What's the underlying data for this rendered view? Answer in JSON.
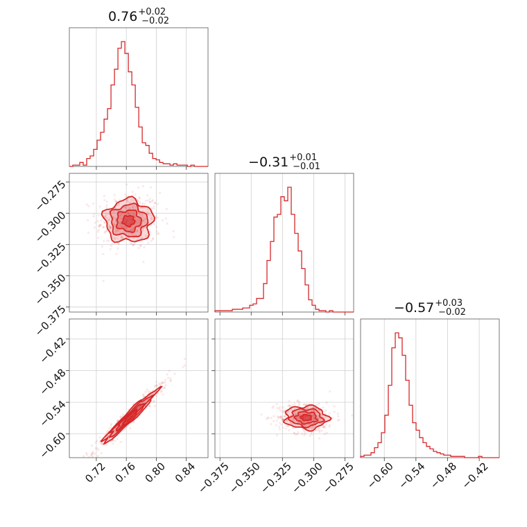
{
  "chart_data": {
    "type": "corner",
    "color": "#d62728",
    "parameters": [
      {
        "title_median": "0.76",
        "title_plus": "+0.02",
        "title_minus": "−0.02",
        "median": 0.76,
        "ticks": [
          0.72,
          0.76,
          0.8,
          0.84
        ],
        "tick_labels": [
          "0.72",
          "0.76",
          "0.80",
          "0.84"
        ],
        "range": [
          0.684,
          0.869
        ],
        "hist": {
          "bin_edges_start": 0.684,
          "bin_width": 0.00463,
          "counts": [
            0,
            1,
            1,
            3,
            1,
            6,
            8,
            13,
            20,
            26,
            36,
            44,
            62,
            74,
            90,
            95,
            86,
            72,
            62,
            45,
            30,
            18,
            16,
            10,
            6,
            5,
            3,
            2,
            2,
            1,
            2,
            1,
            1,
            1,
            0,
            1,
            0,
            0,
            0,
            0
          ]
        }
      },
      {
        "title_median": "−0.31",
        "title_plus": "+0.01",
        "title_minus": "−0.01",
        "median": -0.306,
        "ticks": [
          -0.375,
          -0.35,
          -0.325,
          -0.3,
          -0.275
        ],
        "tick_labels": [
          "−0.375",
          "−0.350",
          "−0.325",
          "−0.300",
          "−0.275"
        ],
        "range": [
          -0.379,
          -0.268
        ],
        "hist": {
          "bin_edges_start": -0.379,
          "bin_width": 0.002775,
          "counts": [
            1,
            1,
            1,
            1,
            1,
            2,
            2,
            2,
            3,
            3,
            5,
            6,
            10,
            10,
            21,
            38,
            52,
            70,
            72,
            85,
            82,
            92,
            72,
            58,
            45,
            32,
            20,
            9,
            5,
            2,
            1,
            1,
            0,
            1,
            0,
            0,
            0,
            0,
            0,
            0
          ]
        }
      },
      {
        "title_median": "−0.57",
        "title_plus": "+0.03",
        "title_minus": "−0.02",
        "median": -0.57,
        "ticks": [
          -0.6,
          -0.54,
          -0.48,
          -0.42
        ],
        "tick_labels": [
          "−0.60",
          "−0.54",
          "−0.48",
          "−0.42"
        ],
        "range": [
          -0.645,
          -0.382
        ],
        "hist": {
          "bin_edges_start": -0.645,
          "bin_width": 0.006575,
          "counts": [
            1,
            2,
            2,
            4,
            8,
            12,
            20,
            34,
            58,
            88,
            100,
            96,
            82,
            62,
            42,
            28,
            22,
            16,
            12,
            9,
            7,
            5,
            4,
            3,
            2,
            2,
            1,
            1,
            1,
            1,
            0,
            0,
            0,
            0,
            1,
            0,
            0,
            0,
            0,
            0
          ]
        }
      }
    ],
    "pairs": [
      {
        "x": 0,
        "y": 1,
        "center": [
          0.763,
          -0.306
        ],
        "sigma": [
          0.016,
          0.0085
        ],
        "rho": 0.0
      },
      {
        "x": 0,
        "y": 2,
        "center": [
          0.765,
          -0.567
        ],
        "sigma": [
          0.018,
          0.025
        ],
        "rho": 0.97
      },
      {
        "x": 1,
        "y": 2,
        "center": [
          -0.306,
          -0.569
        ],
        "sigma": [
          0.0085,
          0.011
        ],
        "rho": -0.05
      }
    ]
  }
}
